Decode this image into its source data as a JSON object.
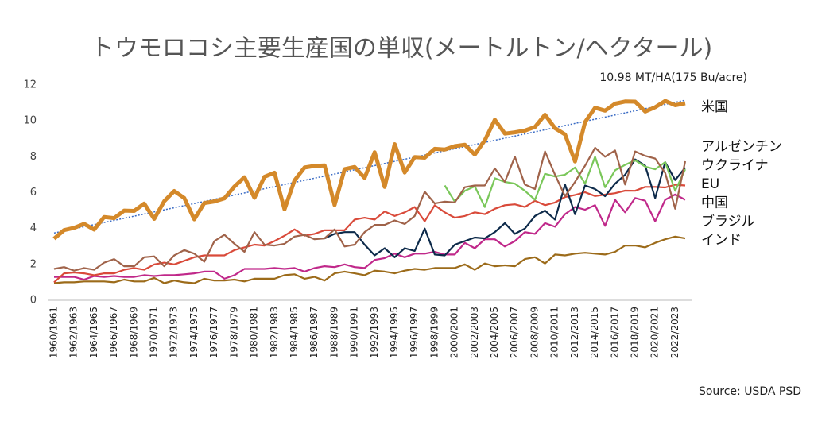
{
  "chart_data": {
    "type": "line",
    "title": "トウモロコシ主要生産国の単収(メートルトン/ヘクタール)",
    "annotation": "10.98 MT/HA(175 Bu/acre)",
    "source": "Source: USDA PSD",
    "categories": [
      "1960/1961",
      null,
      "1962/1963",
      null,
      "1964/1965",
      null,
      "1966/1967",
      null,
      "1968/1969",
      null,
      "1970/1971",
      null,
      "1972/1973",
      null,
      "1974/1975",
      null,
      "1976/1977",
      null,
      "1978/1979",
      null,
      "1980/1981",
      null,
      "1982/1983",
      null,
      "1984/1985",
      null,
      "1986/1987",
      null,
      "1988/1989",
      null,
      "1990/1991",
      null,
      "1992/1993",
      null,
      "1994/1995",
      null,
      "1996/1997",
      null,
      "1998/1999",
      null,
      "2000/2001",
      null,
      "2002/2003",
      null,
      "2004/2005",
      null,
      "2006/2007",
      null,
      "2008/2009",
      null,
      "2010/2011",
      null,
      "2012/2013",
      null,
      "2014/2015",
      null,
      "2016/2017",
      null,
      "2018/2019",
      null,
      "2020/2021",
      null,
      "2022/2023",
      null
    ],
    "ylim": [
      0,
      12
    ],
    "yticks": [
      0,
      2,
      4,
      6,
      8,
      10,
      12
    ],
    "trendline": {
      "color": "#3a6bc4",
      "values": [
        3.75,
        11.15
      ]
    },
    "series": [
      {
        "name": "米国",
        "color": "#d4892a",
        "values": [
          3.43,
          3.91,
          4.04,
          4.26,
          3.94,
          4.64,
          4.58,
          5.0,
          4.98,
          5.39,
          4.54,
          5.52,
          6.09,
          5.7,
          4.51,
          5.42,
          5.51,
          5.68,
          6.34,
          6.86,
          5.71,
          6.88,
          7.11,
          5.07,
          6.68,
          7.4,
          7.49,
          7.52,
          5.31,
          7.31,
          7.43,
          6.82,
          8.25,
          6.32,
          8.7,
          7.12,
          7.98,
          7.95,
          8.44,
          8.4,
          8.59,
          8.67,
          8.12,
          8.92,
          10.06,
          9.29,
          9.36,
          9.46,
          9.66,
          10.34,
          9.59,
          9.24,
          7.74,
          9.93,
          10.73,
          10.57,
          10.96,
          11.08,
          11.07,
          10.52,
          10.76,
          11.11,
          10.87,
          10.98
        ]
      },
      {
        "name": "アルゼンチン",
        "color": "#a0634a",
        "values": [
          1.75,
          1.85,
          1.65,
          1.8,
          1.7,
          2.1,
          2.3,
          1.9,
          1.9,
          2.4,
          2.45,
          1.9,
          2.5,
          2.8,
          2.6,
          2.15,
          3.3,
          3.65,
          3.15,
          2.7,
          3.8,
          3.1,
          3.05,
          3.15,
          3.55,
          3.65,
          3.4,
          3.45,
          3.95,
          3.0,
          3.1,
          3.8,
          4.2,
          4.2,
          4.45,
          4.25,
          4.7,
          6.05,
          5.4,
          5.5,
          5.45,
          6.3,
          6.4,
          6.4,
          7.35,
          6.6,
          8.0,
          6.45,
          6.2,
          8.3,
          7.0,
          5.8,
          6.6,
          7.5,
          8.5,
          8.0,
          8.35,
          6.45,
          8.3,
          8.05,
          7.9,
          7.1,
          5.1,
          7.75
        ]
      },
      {
        "name": "ウクライナ",
        "color": "#7ac75a",
        "values": [
          null,
          null,
          null,
          null,
          null,
          null,
          null,
          null,
          null,
          null,
          null,
          null,
          null,
          null,
          null,
          null,
          null,
          null,
          null,
          null,
          null,
          null,
          null,
          null,
          null,
          null,
          null,
          null,
          null,
          null,
          null,
          null,
          null,
          null,
          null,
          null,
          null,
          null,
          null,
          6.4,
          5.5,
          6.1,
          6.35,
          5.2,
          6.8,
          6.6,
          6.5,
          6.1,
          5.6,
          7.05,
          6.9,
          7.0,
          7.4,
          6.5,
          8.0,
          6.3,
          7.25,
          7.55,
          7.8,
          7.45,
          7.3,
          7.7,
          6.1,
          7.3
        ]
      },
      {
        "name": "EU",
        "color": "#0d2a4a",
        "values": [
          null,
          null,
          null,
          null,
          null,
          null,
          null,
          null,
          null,
          null,
          null,
          null,
          null,
          null,
          null,
          null,
          null,
          null,
          null,
          null,
          null,
          null,
          null,
          null,
          null,
          null,
          null,
          3.45,
          3.7,
          3.8,
          3.8,
          3.1,
          2.5,
          2.9,
          2.4,
          2.9,
          2.75,
          4.0,
          2.55,
          2.5,
          3.1,
          3.3,
          3.5,
          3.45,
          3.8,
          4.3,
          3.7,
          4.0,
          4.7,
          5.0,
          4.5,
          6.45,
          4.8,
          6.4,
          6.2,
          5.8,
          6.5,
          7.0,
          7.85,
          7.5,
          5.7,
          7.7,
          6.7,
          7.4
        ]
      },
      {
        "name": "中国",
        "color": "#d94a3a",
        "values": [
          1.0,
          1.5,
          1.55,
          1.5,
          1.4,
          1.5,
          1.5,
          1.7,
          1.8,
          1.7,
          2.0,
          2.1,
          2.0,
          2.2,
          2.4,
          2.5,
          2.5,
          2.5,
          2.8,
          2.95,
          3.1,
          3.05,
          3.3,
          3.6,
          3.95,
          3.6,
          3.7,
          3.9,
          3.9,
          3.9,
          4.5,
          4.6,
          4.5,
          4.95,
          4.7,
          4.9,
          5.2,
          4.4,
          5.3,
          4.9,
          4.6,
          4.7,
          4.9,
          4.8,
          5.1,
          5.3,
          5.35,
          5.2,
          5.55,
          5.3,
          5.45,
          5.75,
          5.87,
          6.02,
          5.81,
          5.89,
          5.97,
          6.11,
          6.1,
          6.32,
          6.32,
          6.29,
          6.44,
          6.4
        ]
      },
      {
        "name": "ブラジル",
        "color": "#c0288a",
        "values": [
          1.3,
          1.3,
          1.3,
          1.15,
          1.35,
          1.3,
          1.35,
          1.3,
          1.3,
          1.4,
          1.35,
          1.4,
          1.4,
          1.45,
          1.5,
          1.6,
          1.6,
          1.2,
          1.4,
          1.75,
          1.75,
          1.75,
          1.8,
          1.75,
          1.8,
          1.6,
          1.8,
          1.9,
          1.85,
          2.0,
          1.85,
          1.8,
          2.25,
          2.35,
          2.6,
          2.4,
          2.6,
          2.6,
          2.7,
          2.55,
          2.55,
          3.2,
          2.9,
          3.4,
          3.4,
          3.0,
          3.3,
          3.8,
          3.7,
          4.3,
          4.1,
          4.8,
          5.2,
          5.05,
          5.3,
          4.15,
          5.6,
          4.9,
          5.7,
          5.55,
          4.4,
          5.6,
          5.9,
          5.6
        ]
      },
      {
        "name": "インド",
        "color": "#9c6b1a",
        "values": [
          0.95,
          1.0,
          1.0,
          1.05,
          1.05,
          1.05,
          1.0,
          1.15,
          1.05,
          1.05,
          1.25,
          0.95,
          1.1,
          1.0,
          0.95,
          1.2,
          1.1,
          1.1,
          1.15,
          1.05,
          1.2,
          1.2,
          1.2,
          1.4,
          1.45,
          1.2,
          1.3,
          1.1,
          1.5,
          1.6,
          1.5,
          1.4,
          1.65,
          1.6,
          1.5,
          1.65,
          1.75,
          1.7,
          1.8,
          1.8,
          1.8,
          2.0,
          1.7,
          2.05,
          1.9,
          1.95,
          1.9,
          2.3,
          2.4,
          2.05,
          2.55,
          2.5,
          2.6,
          2.65,
          2.6,
          2.55,
          2.7,
          3.05,
          3.05,
          2.95,
          3.2,
          3.4,
          3.55,
          3.45
        ]
      }
    ]
  }
}
